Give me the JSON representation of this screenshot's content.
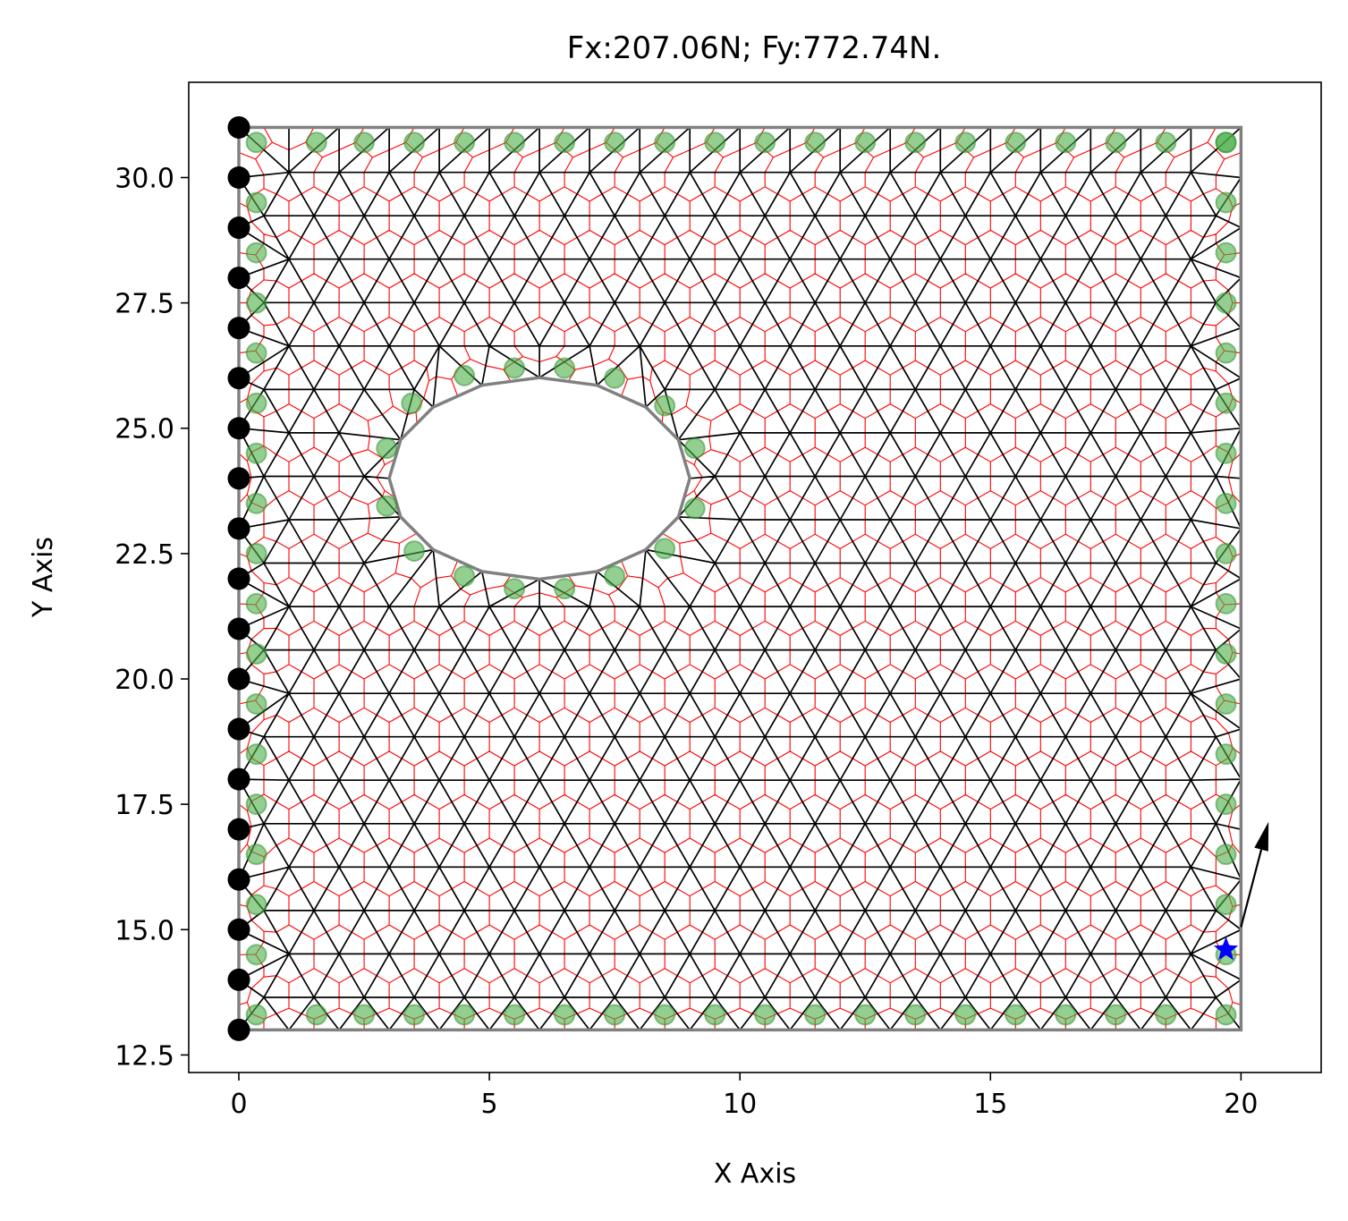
{
  "chart_data": {
    "type": "scatter",
    "title": "Fx:207.06N; Fy:772.74N.",
    "xlabel": "X Axis",
    "ylabel": "Y Axis",
    "xlim": [
      -1.0,
      21.6
    ],
    "ylim": [
      12.15,
      31.9
    ],
    "xticks": [
      0,
      5,
      10,
      15,
      20
    ],
    "xtick_labels": [
      "0",
      "5",
      "10",
      "15",
      "20"
    ],
    "yticks": [
      12.5,
      15.0,
      17.5,
      20.0,
      22.5,
      25.0,
      27.5,
      30.0
    ],
    "ytick_labels": [
      "12.5",
      "15.0",
      "17.5",
      "20.0",
      "22.5",
      "25.0",
      "27.5",
      "30.0"
    ],
    "grid": false,
    "legend": "none",
    "domain": {
      "x": [
        0,
        20
      ],
      "y": [
        13,
        31
      ]
    },
    "hole": {
      "center": [
        6,
        24
      ],
      "radius": 3
    },
    "series": [
      {
        "kind": "fixed-supports",
        "x": 0,
        "y": [
          13,
          14,
          15,
          16,
          17,
          18,
          19,
          20,
          21,
          22,
          23,
          24,
          25,
          26,
          27,
          28,
          29,
          30,
          31
        ]
      },
      {
        "kind": "boundary-nodes",
        "top_y": 30.7,
        "bottom_y": 13.3,
        "horizontal_x": [
          0.35,
          1.55,
          2.5,
          3.5,
          4.5,
          5.5,
          6.5,
          7.5,
          8.5,
          9.5,
          10.5,
          11.5,
          12.5,
          13.5,
          14.5,
          15.5,
          16.5,
          17.5,
          18.5,
          19.7
        ],
        "left_x": 0.35,
        "right_x": 19.7,
        "vertical_y": [
          14.5,
          15.5,
          16.5,
          17.5,
          18.5,
          19.5,
          20.5,
          21.5,
          22.5,
          23.5,
          24.5,
          25.5,
          26.5,
          27.5,
          28.5,
          29.5
        ],
        "hole_nodes": [
          [
            7.5,
            22.05
          ],
          [
            6.5,
            21.8
          ],
          [
            5.5,
            21.8
          ],
          [
            4.5,
            22.05
          ],
          [
            3.5,
            22.55
          ],
          [
            2.95,
            23.45
          ],
          [
            2.95,
            24.6
          ],
          [
            3.45,
            25.5
          ],
          [
            4.5,
            26.05
          ],
          [
            5.5,
            26.2
          ],
          [
            6.5,
            26.2
          ],
          [
            7.5,
            26.0
          ],
          [
            8.5,
            25.45
          ],
          [
            9.1,
            24.6
          ],
          [
            9.1,
            23.4
          ],
          [
            8.5,
            22.6
          ]
        ]
      },
      {
        "kind": "load-point",
        "x": 19.7,
        "y": 14.6
      }
    ],
    "load": {
      "fx": 207.06,
      "fy": 772.74,
      "origin": [
        20,
        15.05
      ],
      "end": [
        20.55,
        17.15
      ]
    }
  }
}
